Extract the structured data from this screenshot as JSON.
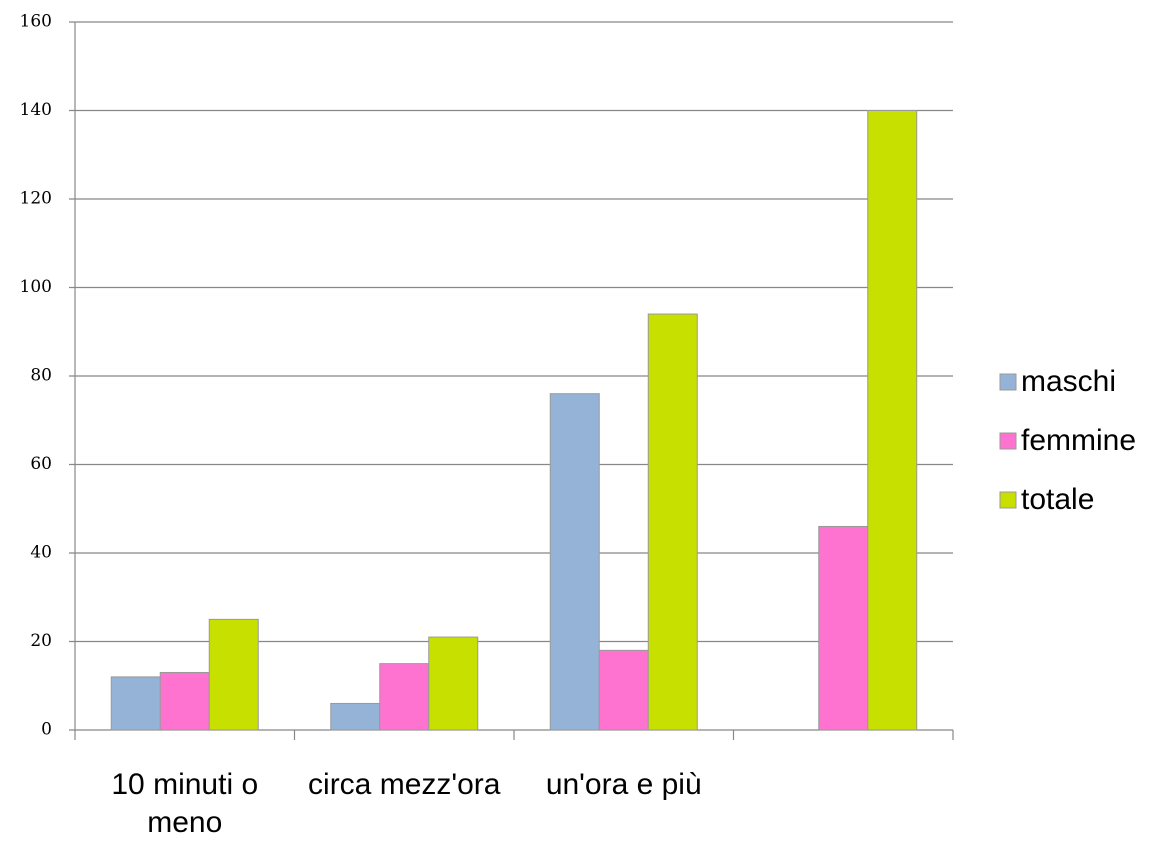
{
  "chart_data": {
    "type": "bar",
    "categories": [
      "10 minuti o meno",
      "circa mezz'ora",
      "un'ora e più",
      null
    ],
    "series": [
      {
        "name": "maschi",
        "color": "#95b3d7",
        "values": [
          12,
          6,
          76,
          null
        ]
      },
      {
        "name": "femmine",
        "color": "#ff73d0",
        "values": [
          13,
          15,
          18,
          46
        ]
      },
      {
        "name": "totale",
        "color": "#c8e000",
        "values": [
          25,
          21,
          94,
          140
        ]
      }
    ],
    "ylim": [
      0,
      160
    ],
    "yticks": [
      0,
      20,
      40,
      60,
      80,
      100,
      120,
      140,
      160
    ],
    "grid": true,
    "legend": "right"
  }
}
